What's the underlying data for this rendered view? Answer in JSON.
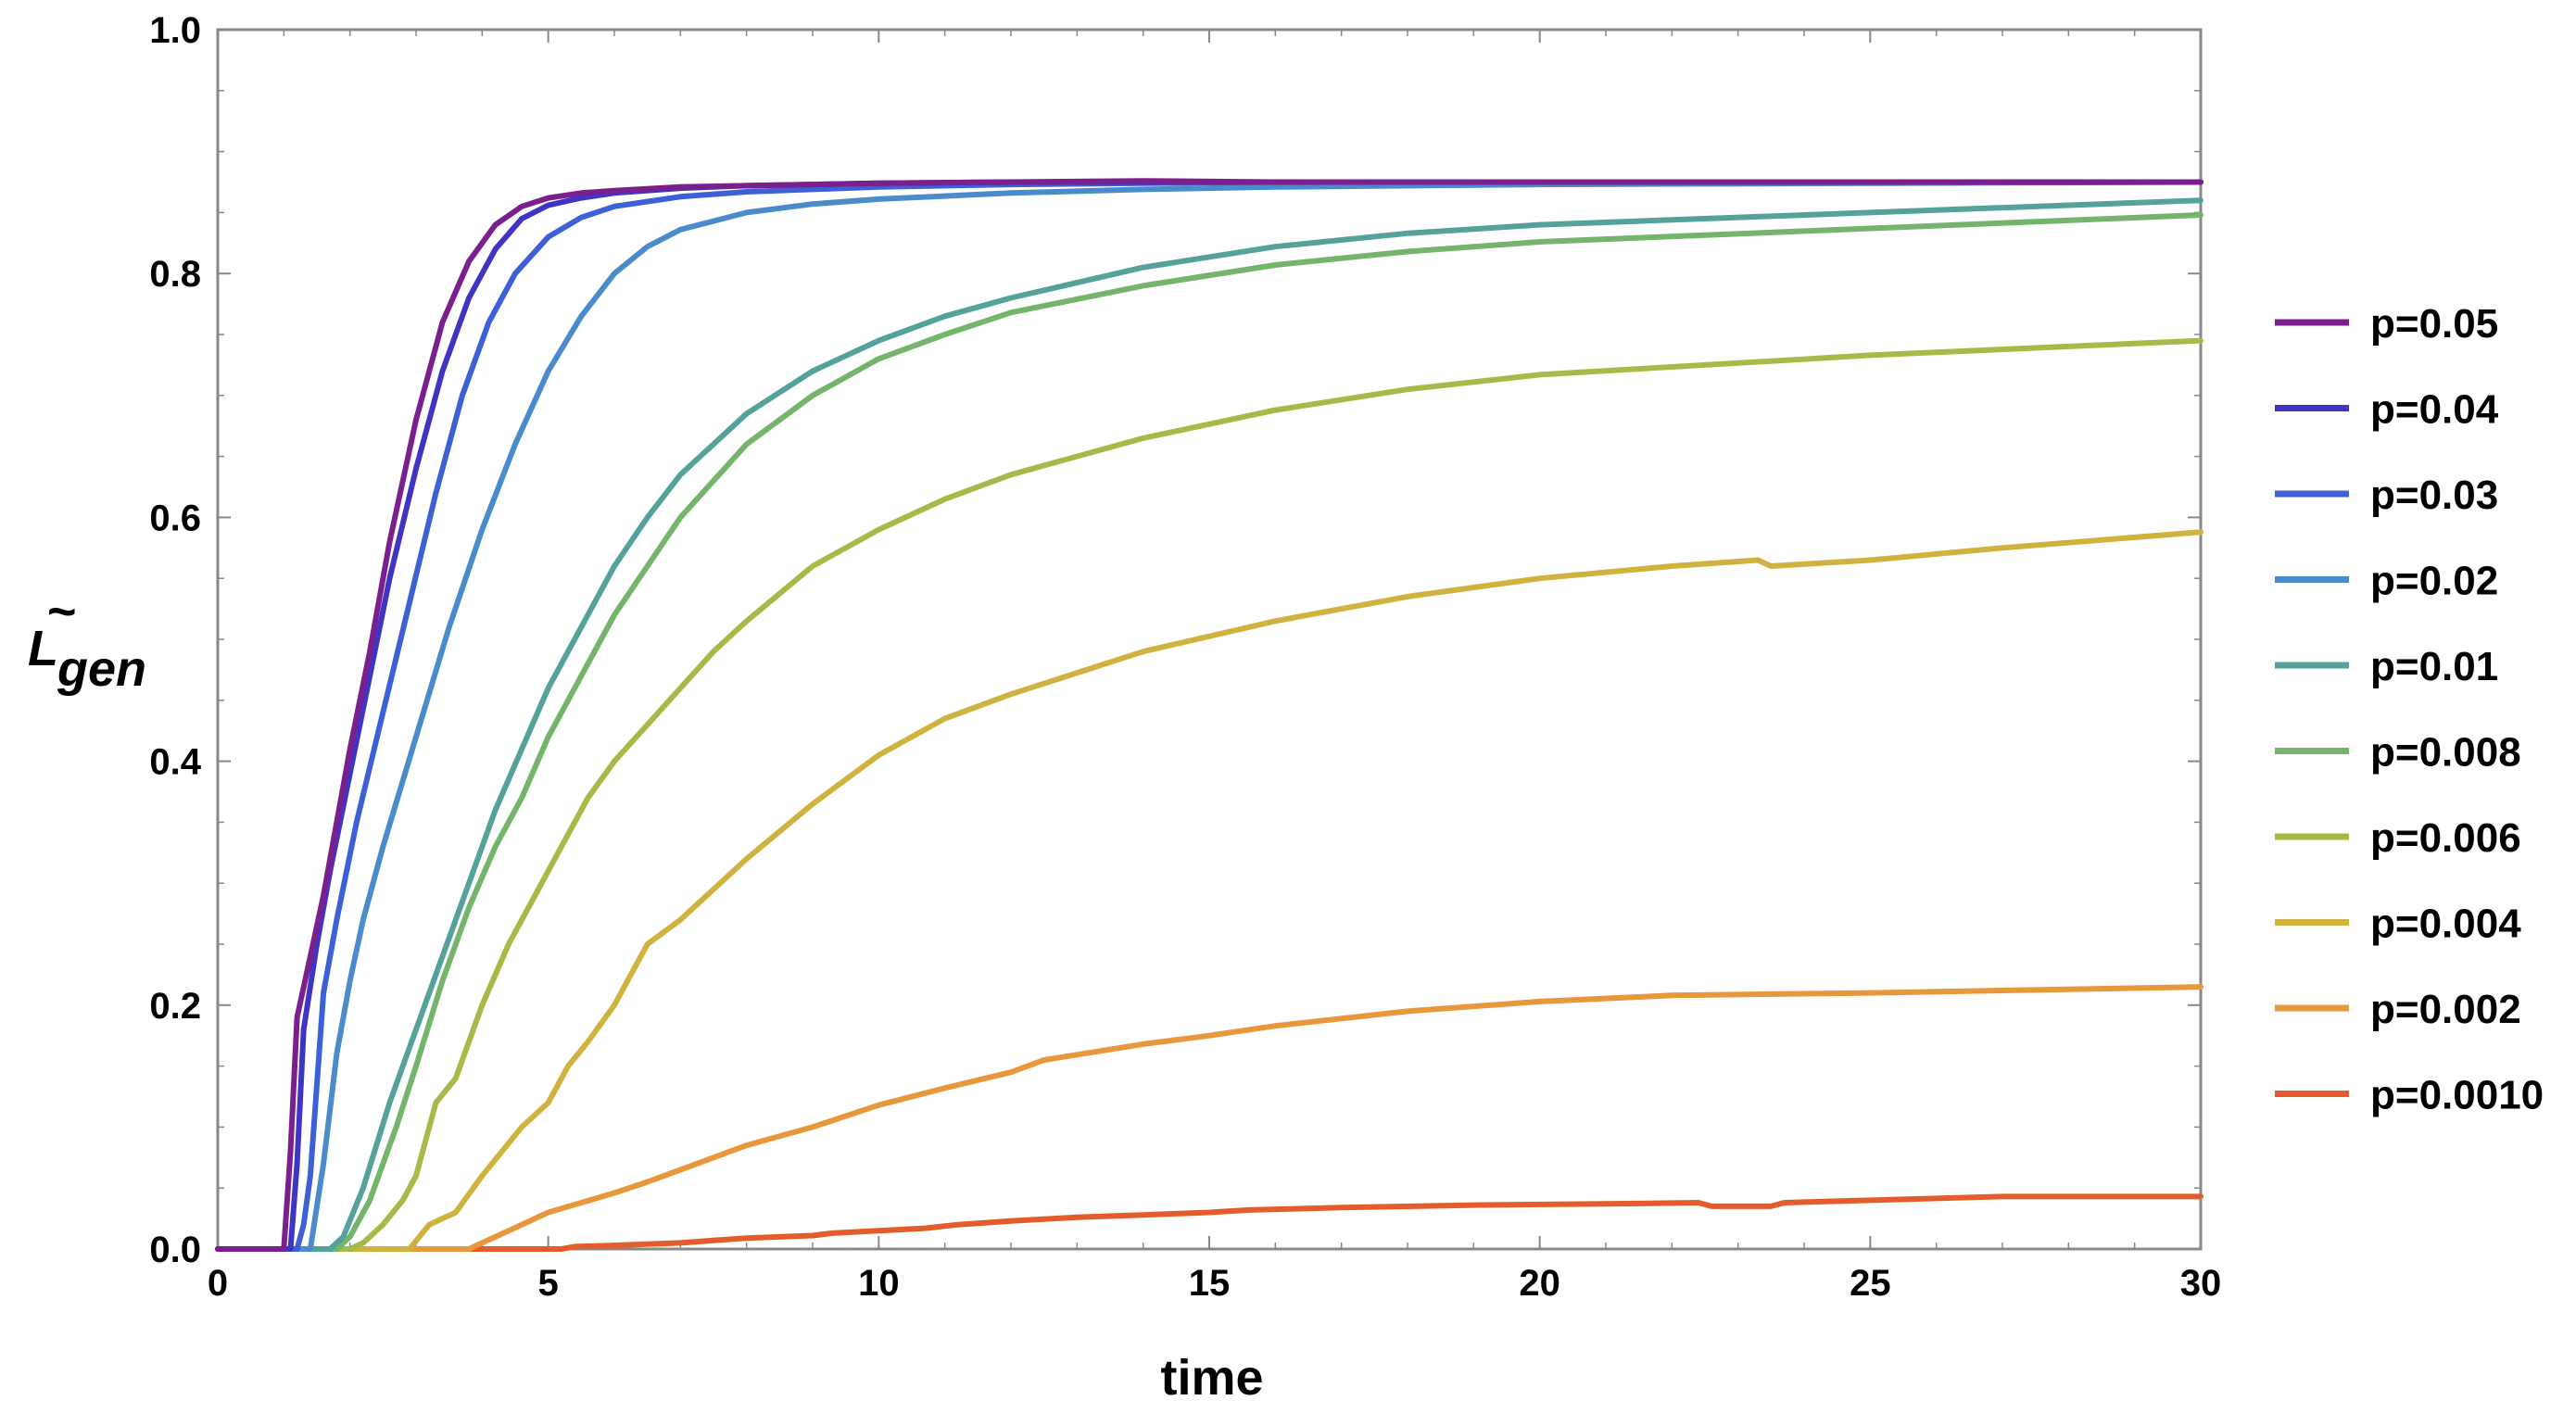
{
  "chart_data": {
    "type": "line",
    "title": "",
    "xlabel": "time",
    "ylabel_main": "L",
    "ylabel_sub": "gen",
    "ylabel_accent": "~",
    "xlim": [
      0,
      30
    ],
    "ylim": [
      0,
      1.0
    ],
    "x_ticks": [
      0,
      5,
      10,
      15,
      20,
      25,
      30
    ],
    "x_tick_labels": [
      "0",
      "5",
      "10",
      "15",
      "20",
      "25",
      "30"
    ],
    "y_ticks": [
      0,
      0.2,
      0.4,
      0.6,
      0.8,
      1.0
    ],
    "y_tick_labels": [
      "0.0",
      "0.2",
      "0.4",
      "0.6",
      "0.8",
      "1.0"
    ],
    "grid": false,
    "legend_position": "right",
    "series": [
      {
        "name": "p=0.05",
        "color": "#7b1f8e",
        "x": [
          0,
          1.0,
          1.1,
          1.2,
          1.4,
          1.6,
          1.8,
          2.0,
          2.3,
          2.6,
          3.0,
          3.4,
          3.8,
          4.2,
          4.6,
          5.0,
          5.5,
          6,
          7,
          8,
          10,
          12,
          14,
          16,
          20,
          25,
          30
        ],
        "y": [
          0,
          0,
          0.08,
          0.19,
          0.24,
          0.29,
          0.35,
          0.41,
          0.49,
          0.58,
          0.68,
          0.76,
          0.81,
          0.84,
          0.855,
          0.862,
          0.866,
          0.868,
          0.871,
          0.872,
          0.874,
          0.875,
          0.876,
          0.875,
          0.875,
          0.875,
          0.875
        ]
      },
      {
        "name": "p=0.04",
        "color": "#3f35c2",
        "x": [
          0,
          1.1,
          1.2,
          1.3,
          1.5,
          1.7,
          2.0,
          2.3,
          2.6,
          3.0,
          3.4,
          3.8,
          4.2,
          4.6,
          5.0,
          5.5,
          6,
          7,
          8,
          10,
          12,
          14,
          16,
          20,
          25,
          30
        ],
        "y": [
          0,
          0,
          0.07,
          0.18,
          0.25,
          0.31,
          0.39,
          0.47,
          0.55,
          0.64,
          0.72,
          0.78,
          0.82,
          0.845,
          0.856,
          0.862,
          0.866,
          0.87,
          0.872,
          0.874,
          0.875,
          0.875,
          0.875,
          0.875,
          0.875,
          0.875
        ]
      },
      {
        "name": "p=0.03",
        "color": "#3d60d6",
        "x": [
          0,
          1.2,
          1.3,
          1.4,
          1.6,
          1.8,
          2.1,
          2.5,
          2.9,
          3.3,
          3.7,
          4.1,
          4.5,
          5.0,
          5.5,
          6,
          7,
          8,
          10,
          12,
          14,
          16,
          20,
          25,
          30
        ],
        "y": [
          0,
          0,
          0.02,
          0.06,
          0.21,
          0.27,
          0.35,
          0.44,
          0.53,
          0.62,
          0.7,
          0.76,
          0.8,
          0.83,
          0.846,
          0.855,
          0.863,
          0.867,
          0.871,
          0.873,
          0.874,
          0.875,
          0.875,
          0.875,
          0.875
        ]
      },
      {
        "name": "p=0.02",
        "color": "#4a8ccb",
        "x": [
          0,
          1.4,
          1.6,
          1.8,
          2.0,
          2.2,
          2.5,
          3.0,
          3.5,
          4.0,
          4.5,
          5.0,
          5.5,
          6.0,
          6.5,
          7.0,
          8.0,
          9.0,
          10,
          12,
          14,
          16,
          20,
          25,
          30
        ],
        "y": [
          0,
          0,
          0.07,
          0.16,
          0.22,
          0.27,
          0.33,
          0.42,
          0.51,
          0.59,
          0.66,
          0.72,
          0.765,
          0.8,
          0.822,
          0.836,
          0.85,
          0.857,
          0.861,
          0.866,
          0.869,
          0.871,
          0.873,
          0.874,
          0.875
        ]
      },
      {
        "name": "p=0.01",
        "color": "#54a29a",
        "x": [
          0,
          1.7,
          1.9,
          2.2,
          2.6,
          2.8,
          3.0,
          3.4,
          3.8,
          4.2,
          4.6,
          5.0,
          5.5,
          6.0,
          6.5,
          7.0,
          8.0,
          9.0,
          10,
          11,
          12,
          14,
          16,
          18,
          20,
          25,
          30
        ],
        "y": [
          0,
          0,
          0.01,
          0.05,
          0.12,
          0.15,
          0.18,
          0.24,
          0.3,
          0.36,
          0.41,
          0.46,
          0.51,
          0.56,
          0.6,
          0.635,
          0.685,
          0.72,
          0.745,
          0.765,
          0.78,
          0.805,
          0.822,
          0.833,
          0.84,
          0.85,
          0.86
        ]
      },
      {
        "name": "p=0.008",
        "color": "#74b46b",
        "x": [
          0,
          1.8,
          2.0,
          2.3,
          2.7,
          3.0,
          3.4,
          3.8,
          4.2,
          4.6,
          5.0,
          5.5,
          6.0,
          6.5,
          7.0,
          8.0,
          9.0,
          10,
          11,
          12,
          14,
          16,
          18,
          20,
          25,
          30
        ],
        "y": [
          0,
          0,
          0.01,
          0.04,
          0.1,
          0.15,
          0.22,
          0.28,
          0.33,
          0.37,
          0.42,
          0.47,
          0.52,
          0.56,
          0.6,
          0.66,
          0.7,
          0.73,
          0.75,
          0.768,
          0.79,
          0.807,
          0.818,
          0.826,
          0.837,
          0.848
        ]
      },
      {
        "name": "p=0.006",
        "color": "#a5bb48",
        "x": [
          0,
          2.0,
          2.2,
          2.5,
          2.8,
          3.0,
          3.3,
          3.6,
          4.0,
          4.4,
          4.8,
          5.2,
          5.6,
          6.0,
          6.5,
          7.0,
          7.5,
          8.0,
          9.0,
          10,
          11,
          12,
          14,
          16,
          18,
          20,
          25,
          30
        ],
        "y": [
          0,
          0,
          0.005,
          0.02,
          0.04,
          0.06,
          0.12,
          0.14,
          0.2,
          0.25,
          0.29,
          0.33,
          0.37,
          0.4,
          0.43,
          0.46,
          0.49,
          0.515,
          0.56,
          0.59,
          0.615,
          0.635,
          0.665,
          0.688,
          0.705,
          0.717,
          0.733,
          0.745
        ]
      },
      {
        "name": "p=0.004",
        "color": "#d0b33f",
        "x": [
          0,
          2.9,
          3.2,
          3.6,
          4.0,
          4.3,
          4.6,
          5.0,
          5.3,
          5.6,
          6.0,
          6.5,
          7.0,
          8.0,
          9.0,
          10,
          11,
          12,
          14,
          16,
          18,
          20,
          22,
          23.3,
          23.5,
          25,
          27,
          30
        ],
        "y": [
          0,
          0,
          0.02,
          0.03,
          0.06,
          0.08,
          0.1,
          0.12,
          0.15,
          0.17,
          0.2,
          0.25,
          0.27,
          0.32,
          0.365,
          0.405,
          0.435,
          0.455,
          0.49,
          0.515,
          0.535,
          0.55,
          0.56,
          0.565,
          0.56,
          0.565,
          0.575,
          0.588
        ]
      },
      {
        "name": "p=0.002",
        "color": "#e8973a",
        "x": [
          0,
          3.8,
          4.0,
          4.4,
          4.8,
          5.0,
          5.5,
          6.0,
          6.5,
          7.0,
          7.5,
          8.0,
          9.0,
          10,
          11,
          12,
          12.5,
          14,
          15,
          16,
          18,
          20,
          22,
          25,
          27,
          30
        ],
        "y": [
          0,
          0,
          0.005,
          0.015,
          0.025,
          0.03,
          0.038,
          0.046,
          0.055,
          0.065,
          0.075,
          0.085,
          0.1,
          0.118,
          0.132,
          0.145,
          0.155,
          0.168,
          0.175,
          0.183,
          0.195,
          0.203,
          0.208,
          0.21,
          0.212,
          0.215
        ]
      },
      {
        "name": "p=0.0010",
        "color": "#e35d2a",
        "x": [
          0,
          5.2,
          5.4,
          6.0,
          7.0,
          7.5,
          8.0,
          9.0,
          9.3,
          10.0,
          10.7,
          11.2,
          12.0,
          13.0,
          14.0,
          15.0,
          15.6,
          17,
          19,
          21,
          22.4,
          22.6,
          23.5,
          23.7,
          25,
          27,
          30
        ],
        "y": [
          0,
          0,
          0.002,
          0.003,
          0.005,
          0.007,
          0.009,
          0.011,
          0.013,
          0.015,
          0.017,
          0.02,
          0.023,
          0.026,
          0.028,
          0.03,
          0.032,
          0.034,
          0.036,
          0.037,
          0.038,
          0.035,
          0.035,
          0.038,
          0.04,
          0.043,
          0.043
        ]
      }
    ]
  }
}
